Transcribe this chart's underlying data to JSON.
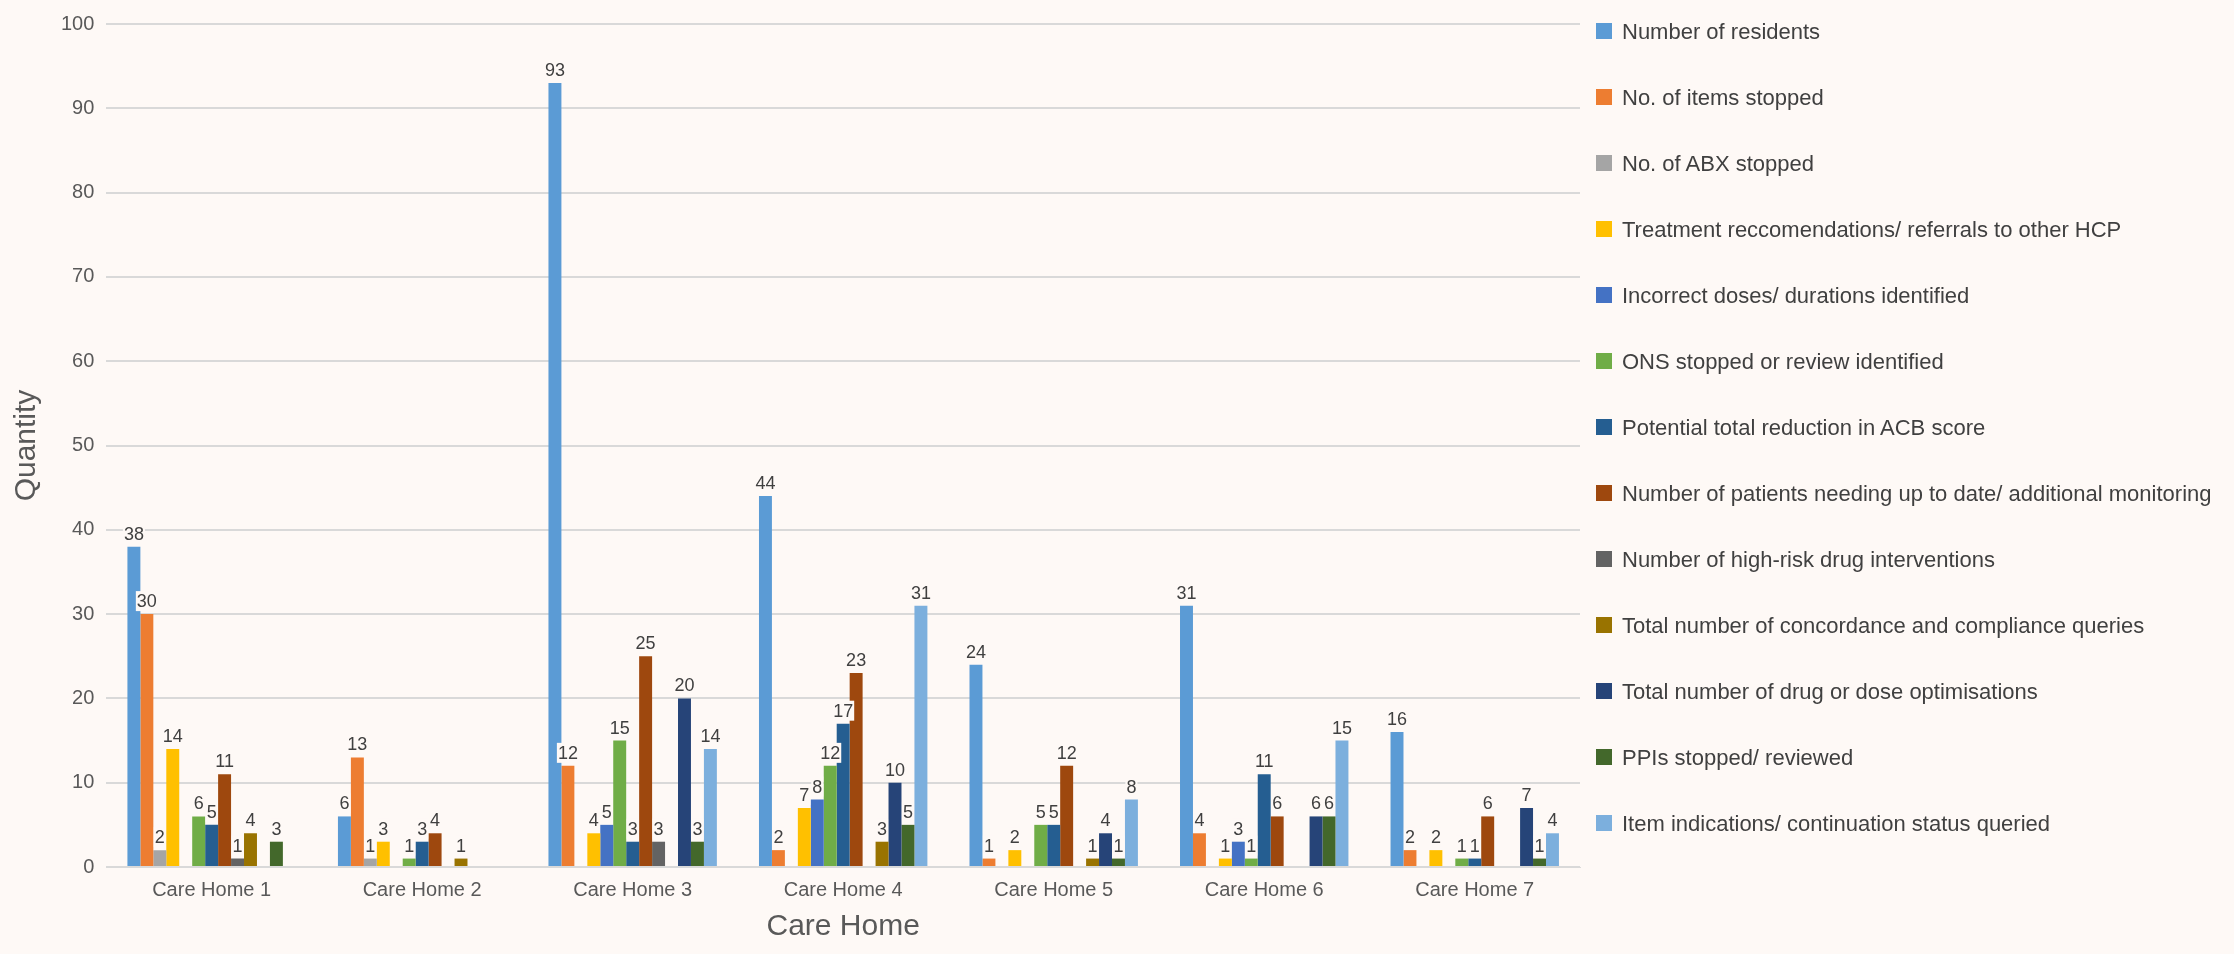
{
  "chart_data": {
    "type": "bar",
    "xlabel": "Care Home",
    "ylabel": "Quantity",
    "categories": [
      "Care Home 1",
      "Care Home 2",
      "Care Home 3",
      "Care Home 4",
      "Care Home 5",
      "Care Home 6",
      "Care Home 7"
    ],
    "series": [
      {
        "name": "Number of residents",
        "color": "#5b9bd5",
        "values": [
          38,
          6,
          93,
          44,
          24,
          31,
          16
        ]
      },
      {
        "name": "No. of items stopped",
        "color": "#ed7d31",
        "values": [
          30,
          13,
          12,
          2,
          1,
          4,
          2
        ]
      },
      {
        "name": "No. of ABX stopped",
        "color": "#a5a5a5",
        "values": [
          2,
          1,
          null,
          null,
          null,
          null,
          null
        ]
      },
      {
        "name": "Treatment reccomendations/ referrals to other HCP",
        "color": "#ffc000",
        "values": [
          14,
          3,
          4,
          7,
          2,
          1,
          2
        ]
      },
      {
        "name": "Incorrect doses/ durations identified",
        "color": "#4472c4",
        "values": [
          null,
          null,
          5,
          8,
          null,
          3,
          null
        ]
      },
      {
        "name": "ONS stopped or review identified",
        "color": "#70ad47",
        "values": [
          6,
          1,
          15,
          12,
          5,
          1,
          1
        ]
      },
      {
        "name": "Potential total reduction in ACB score",
        "color": "#255e91",
        "values": [
          5,
          3,
          3,
          17,
          5,
          11,
          1
        ]
      },
      {
        "name": "Number of patients needing up to date/ additional monitoring",
        "color": "#9e480e",
        "values": [
          11,
          4,
          25,
          23,
          12,
          6,
          6
        ]
      },
      {
        "name": "Number of high-risk drug interventions",
        "color": "#636363",
        "values": [
          1,
          null,
          3,
          null,
          null,
          null,
          null
        ]
      },
      {
        "name": "Total number of concordance and compliance queries",
        "color": "#997300",
        "values": [
          4,
          1,
          null,
          3,
          1,
          null,
          null
        ]
      },
      {
        "name": "Total number of drug or dose optimisations",
        "color": "#264478",
        "values": [
          null,
          null,
          20,
          10,
          4,
          6,
          7
        ]
      },
      {
        "name": "PPIs stopped/ reviewed",
        "color": "#43682b",
        "values": [
          3,
          null,
          3,
          5,
          1,
          6,
          1
        ]
      },
      {
        "name": "Item indications/ continuation status queried",
        "color": "#7cafdd",
        "values": [
          null,
          null,
          14,
          31,
          8,
          15,
          4
        ]
      }
    ],
    "ylim": [
      0,
      100
    ],
    "yticks": [
      0,
      10,
      20,
      30,
      40,
      50,
      60,
      70,
      80,
      90,
      100
    ],
    "grid": "y",
    "legend": "right",
    "data_labels": true
  }
}
